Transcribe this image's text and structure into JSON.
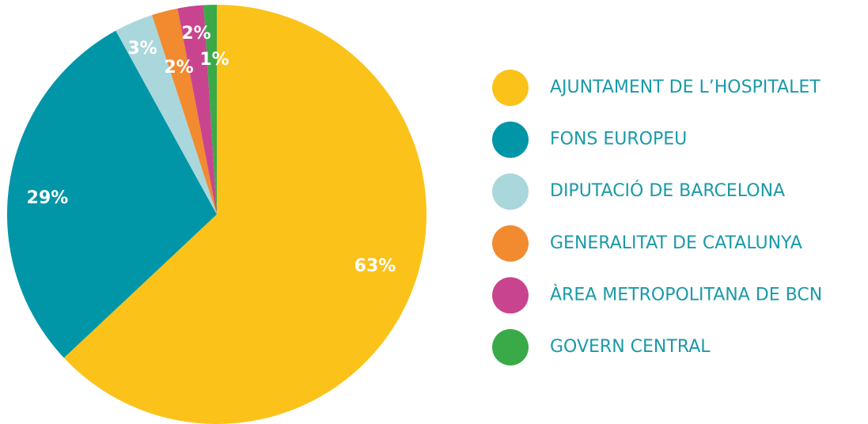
{
  "chart_data": {
    "type": "pie",
    "categories": [
      "AJUNTAMENT DE L’HOSPITALET",
      "FONS EUROPEU",
      "DIPUTACIÓ DE BARCELONA",
      "GENERALITAT DE CATALUNYA",
      "ÀREA METROPOLITANA DE BCN",
      "GOVERN CENTRAL"
    ],
    "values": [
      63,
      29,
      3,
      2,
      2,
      1
    ],
    "value_labels": [
      "63%",
      "29%",
      "3%",
      "2%",
      "2%",
      "1%"
    ],
    "colors": [
      "#fbc21a",
      "#0096a8",
      "#a9d7dc",
      "#f28a30",
      "#c9448f",
      "#3aaa49"
    ]
  }
}
